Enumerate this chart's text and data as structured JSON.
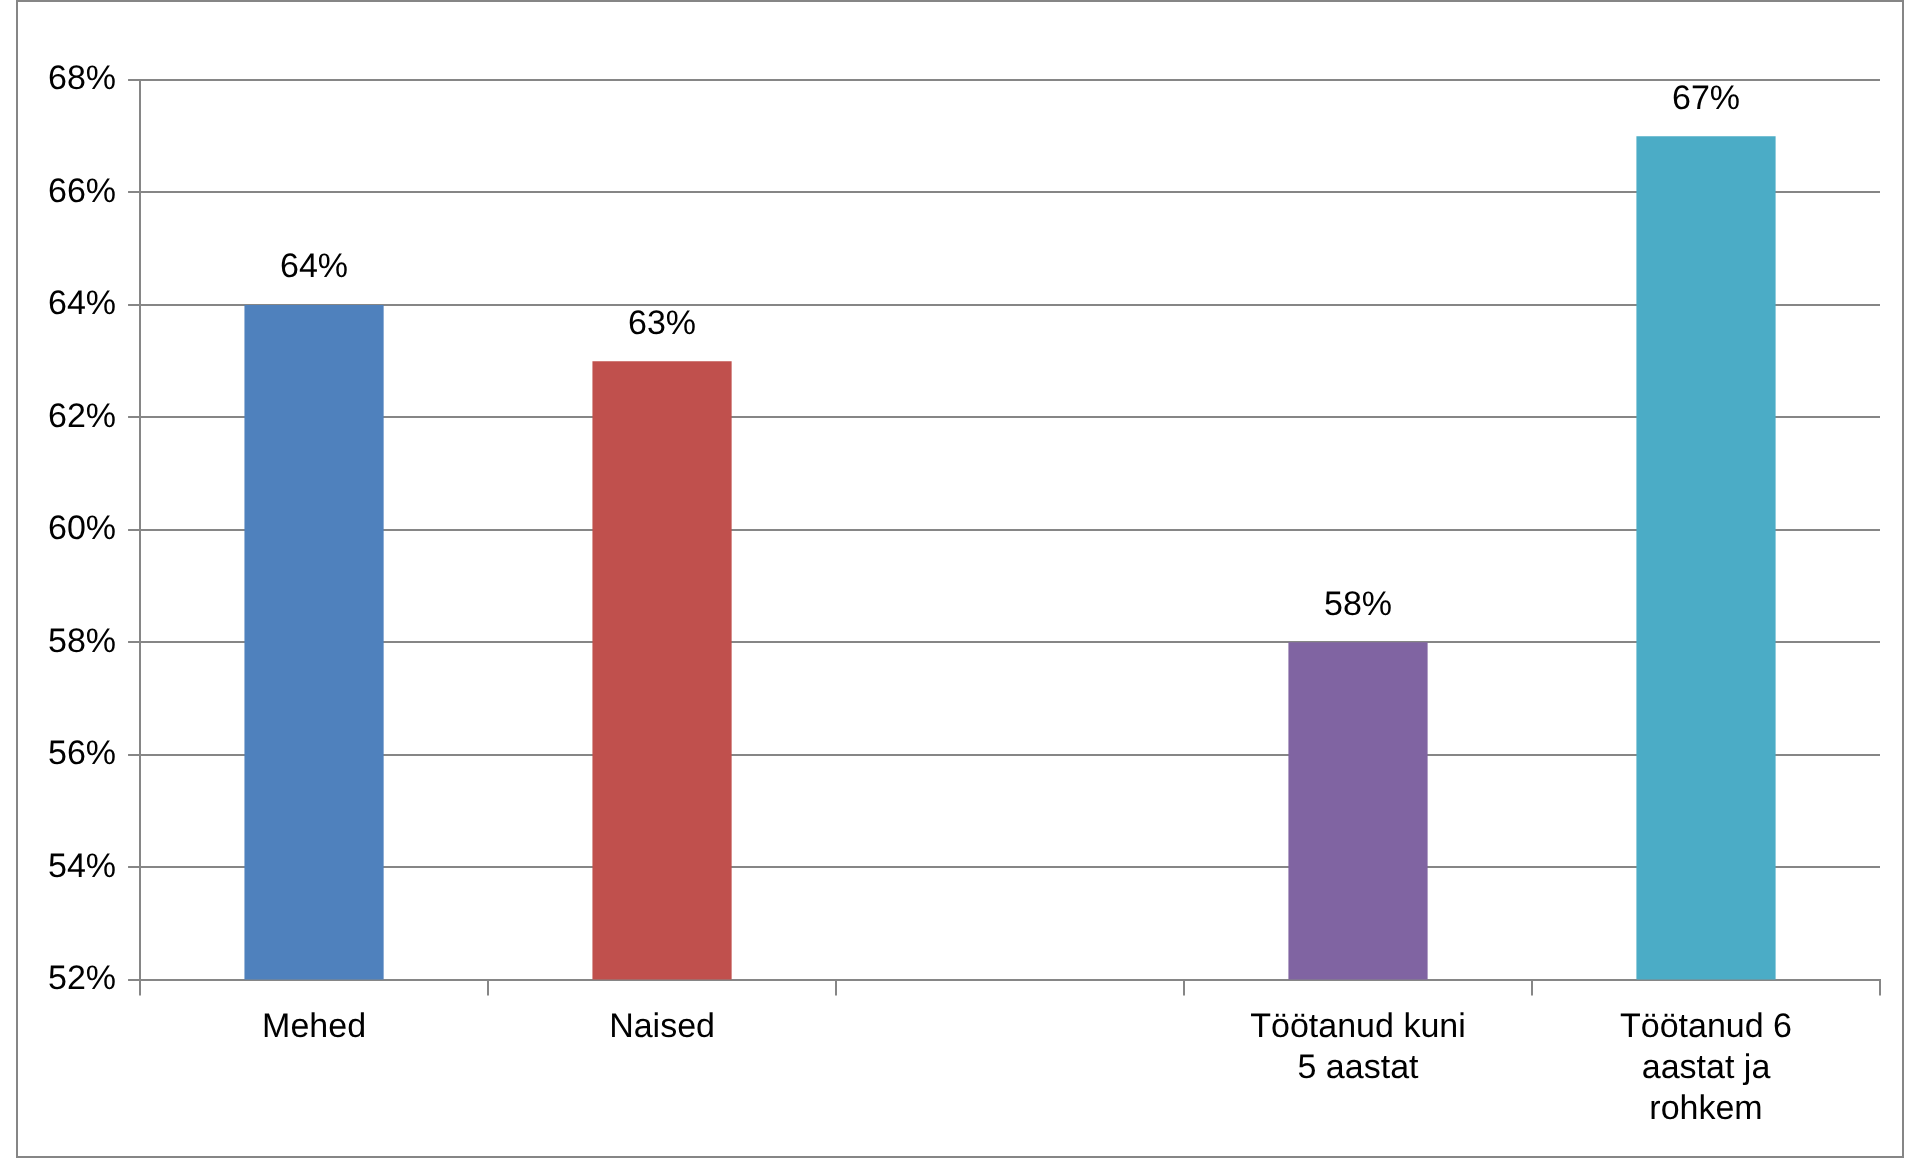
{
  "chart_data": {
    "type": "bar",
    "categories": [
      "Mehed",
      "Naised",
      null,
      "Töötanud kuni 5 aastat",
      "Töötanud 6 aastat ja rohkem"
    ],
    "values": [
      64,
      63,
      null,
      58,
      67
    ],
    "colors": [
      "#4f81bd",
      "#c0504d",
      "#000000",
      "#8064a2",
      "#4bacc6"
    ],
    "value_labels": [
      "64%",
      "63%",
      null,
      "58%",
      "67%"
    ],
    "ylim": [
      52,
      68
    ],
    "yticks": [
      {
        "value": 52,
        "label": "52%"
      },
      {
        "value": 54,
        "label": "54%"
      },
      {
        "value": 56,
        "label": "56%"
      },
      {
        "value": 58,
        "label": "58%"
      },
      {
        "value": 60,
        "label": "60%"
      },
      {
        "value": 62,
        "label": "62%"
      },
      {
        "value": 64,
        "label": "64%"
      },
      {
        "value": 66,
        "label": "66%"
      },
      {
        "value": 68,
        "label": "68%"
      }
    ],
    "grid": "y",
    "legend": false
  }
}
